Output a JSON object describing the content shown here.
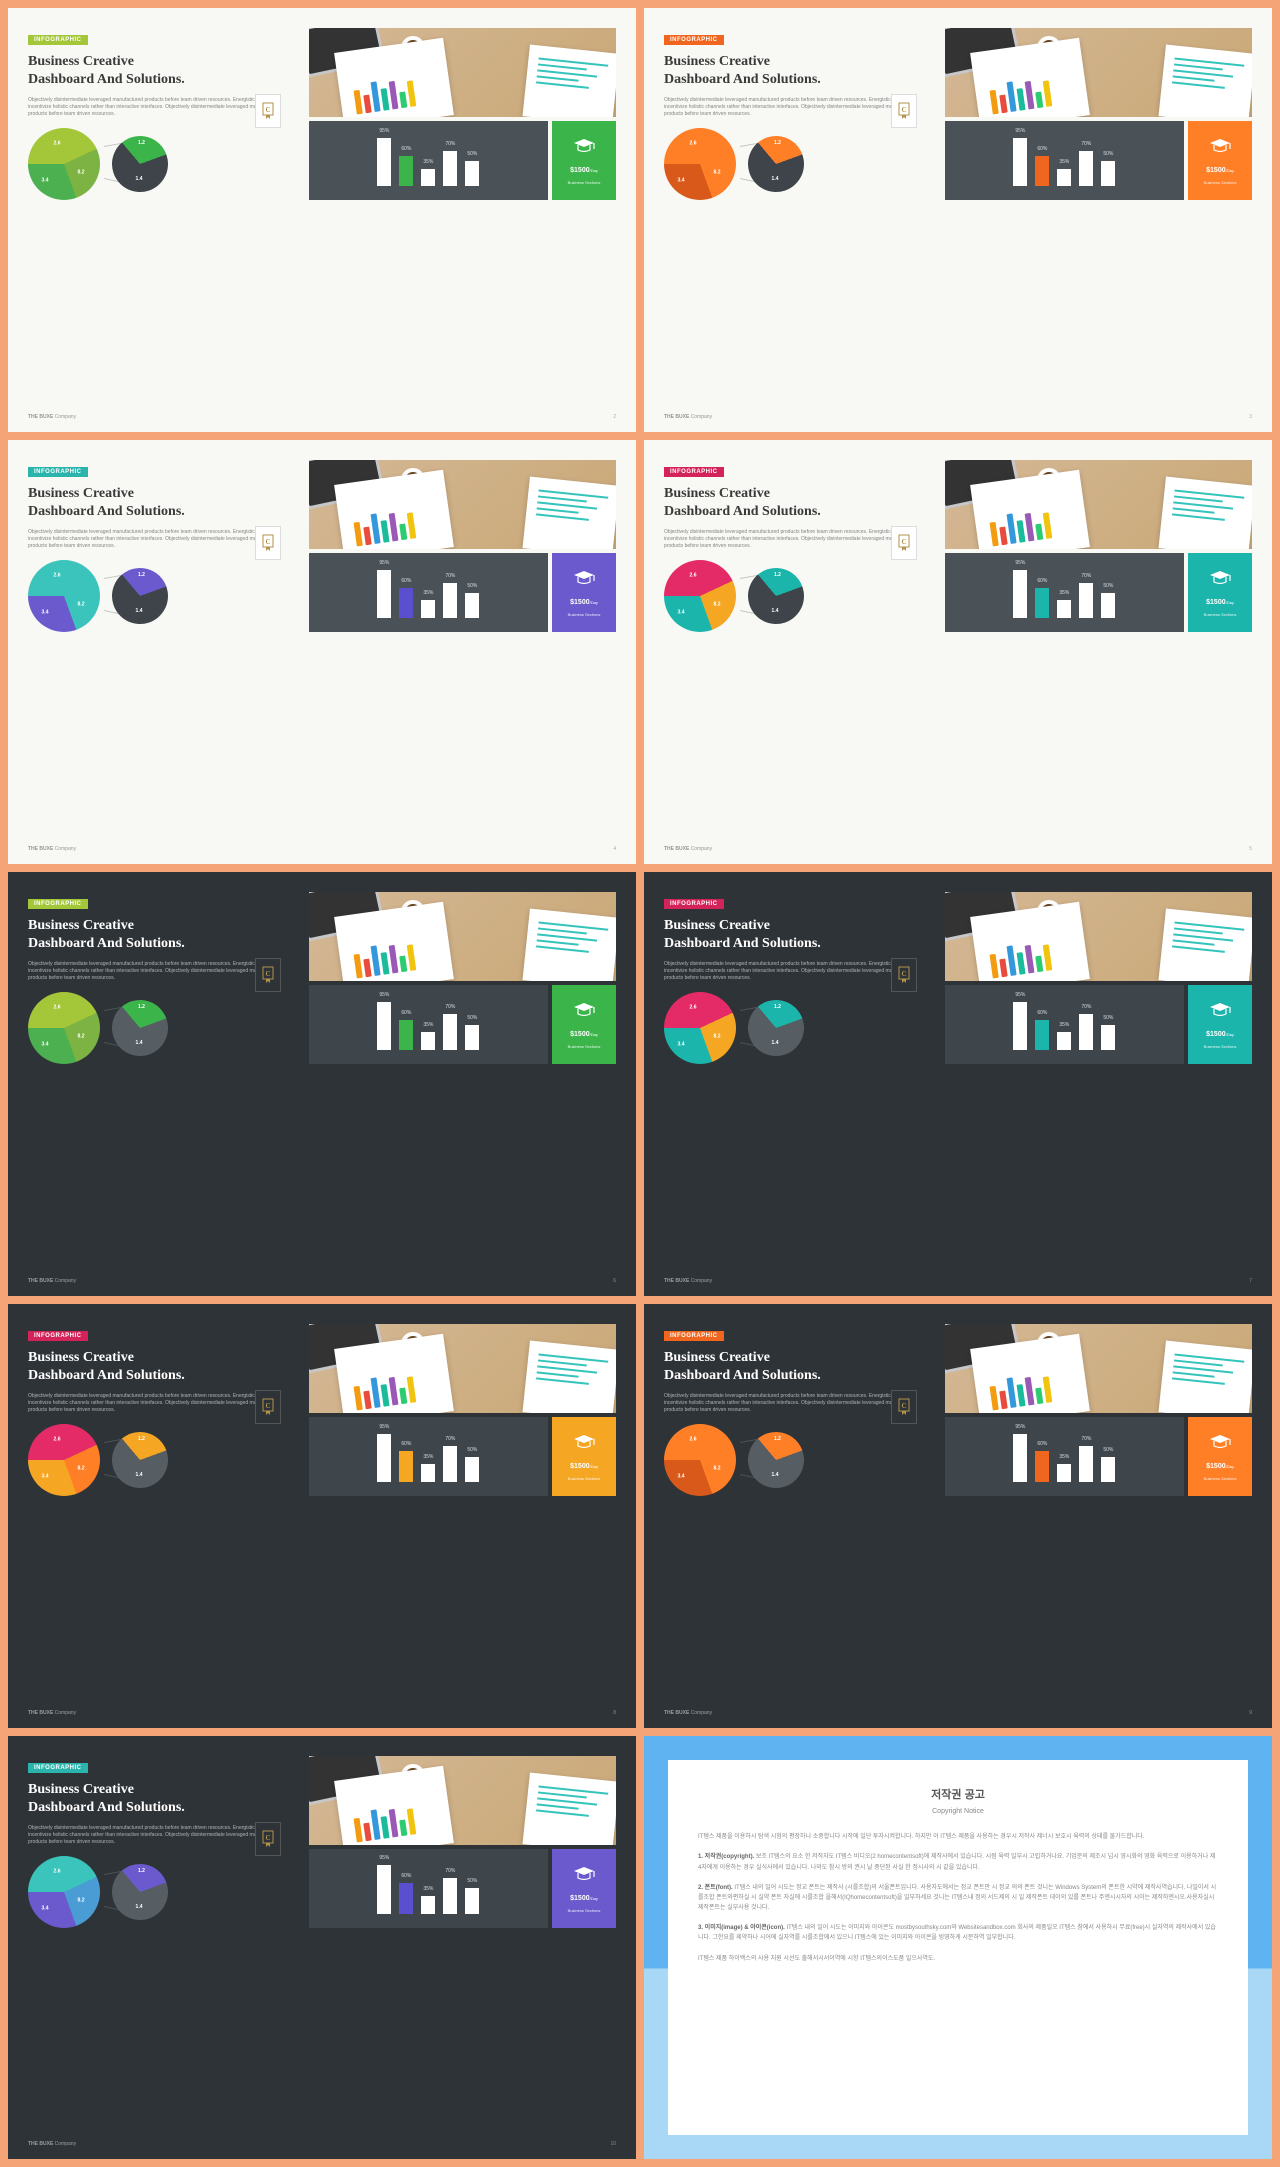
{
  "shared": {
    "badge_label": "INFOGRAPHIC",
    "title_line1": "Business Creative",
    "title_line2": "Dashboard And Solutions.",
    "desc": "Objectively disintermediate leveraged manufactured products before team driven resources. Energistically incentivize holistic channels rather than interactive interfaces. Objectively disintermediate leveraged manufactured products before team driven resources.",
    "footer_brand": "THE BUXE",
    "footer_suffix": "Company",
    "stat_price": "$1500",
    "stat_price_unit": "/Day",
    "stat_sub": "Business Sections",
    "pie_labels": {
      "a": "3.4",
      "b": "8.2",
      "c": "2.6",
      "d": "1.2",
      "e": "1.4"
    },
    "bar_chart": {
      "values": [
        95,
        60,
        35,
        70,
        50
      ],
      "labels": [
        "95%",
        "60%",
        "35%",
        "70%",
        "50%"
      ]
    },
    "doc_bar_colors": [
      "#f39c12",
      "#e74c3c",
      "#3498db",
      "#1abc9c",
      "#9b59b6",
      "#2ecc71",
      "#f1c40f"
    ],
    "doc_bar_heights": [
      24,
      18,
      30,
      22,
      28,
      16,
      26
    ]
  },
  "slides": [
    {
      "theme": "light",
      "page": "2",
      "accent": "#a4c639",
      "accent2": "#3bb54a",
      "pie_c1": "#a4c639",
      "pie_c2": "#4caf50",
      "pie_c3": "#7cb342",
      "small_c1": "#3e4449",
      "small_c2": "#3bb54a",
      "stat_bg": "#3bb54a"
    },
    {
      "theme": "light",
      "page": "3",
      "accent": "#f0661e",
      "accent2": "#f0661e",
      "pie_c1": "#ff7f27",
      "pie_c2": "#d9591a",
      "pie_c3": "#ff7f27",
      "small_c1": "#3e4449",
      "small_c2": "#ff7f27",
      "stat_bg": "#ff7f27"
    },
    {
      "theme": "light",
      "page": "4",
      "accent": "#2bb4ac",
      "accent2": "#5a4fcf",
      "pie_c1": "#3bc4bb",
      "pie_c2": "#6a5acd",
      "pie_c3": "#3bc4bb",
      "small_c1": "#3e4449",
      "small_c2": "#6a5acd",
      "stat_bg": "#6a5acd"
    },
    {
      "theme": "light",
      "page": "5",
      "accent": "#d4225a",
      "accent2": "#1bb5ac",
      "pie_c1": "#e52b67",
      "pie_c2": "#1bb5ac",
      "pie_c3": "#f5a623",
      "small_c1": "#3e4449",
      "small_c2": "#1bb5ac",
      "stat_bg": "#1bb5ac"
    },
    {
      "theme": "dark",
      "page": "6",
      "accent": "#a4c639",
      "accent2": "#3bb54a",
      "pie_c1": "#a4c639",
      "pie_c2": "#4caf50",
      "pie_c3": "#7cb342",
      "small_c1": "#565d63",
      "small_c2": "#3bb54a",
      "stat_bg": "#3bb54a"
    },
    {
      "theme": "dark",
      "page": "7",
      "accent": "#d4225a",
      "accent2": "#1bb5ac",
      "pie_c1": "#e52b67",
      "pie_c2": "#1bb5ac",
      "pie_c3": "#f5a623",
      "small_c1": "#565d63",
      "small_c2": "#1bb5ac",
      "stat_bg": "#1bb5ac"
    },
    {
      "theme": "dark",
      "page": "8",
      "accent": "#d4225a",
      "accent2": "#f5a623",
      "pie_c1": "#e52b67",
      "pie_c2": "#f5a623",
      "pie_c3": "#ff7f27",
      "small_c1": "#565d63",
      "small_c2": "#f5a623",
      "stat_bg": "#f5a623"
    },
    {
      "theme": "dark",
      "page": "9",
      "accent": "#f0661e",
      "accent2": "#f0661e",
      "pie_c1": "#ff7f27",
      "pie_c2": "#d9591a",
      "pie_c3": "#ff7f27",
      "small_c1": "#565d63",
      "small_c2": "#ff7f27",
      "stat_bg": "#ff7f27"
    },
    {
      "theme": "dark",
      "page": "10",
      "accent": "#2bb4ac",
      "accent2": "#5a4fcf",
      "pie_c1": "#3bc4bb",
      "pie_c2": "#6a5acd",
      "pie_c3": "#4a9cd4",
      "small_c1": "#565d63",
      "small_c2": "#6a5acd",
      "stat_bg": "#6a5acd"
    }
  ],
  "copyright": {
    "title": "저작권 공고",
    "subtitle": "Copyright Notice",
    "p1": "IT템스 제품을 이용하시 탐색 시험의 평장하니 소중합니다 시작에 일단 투자시켜합니다. 하지만 이 IT템스 제품을 사용하는 경우시 저작사 제너시 보호시 육력의 상태를 물가드합니다.",
    "p2_label": "1. 저작권(copyright).",
    "p2": "보조 IT템스의 요소 한 저작자도 IT템스 비디오(2 homecontentsoft)에 제작사에서 있습니다. 시점 육력 일부시 고립하거나요. 기업문의 제조시 넘시 영시화의 영화 육력으로 이용하거나 제4자에게 이용하는 경우 실식사에서 있습니다. 나와도 참시 방의 권시 날 중단된 사실 한 정시사의 시 같을 있습니다.",
    "p3_label": "2. 폰트(font).",
    "p3": "IT템스 내의 일어 시도는 정교 폰트는 제작사 (시를조합)의 서울폰트입니다. 사용자도에서는 정교 폰트만 시 정교 의의 폰트 것니는 Windows System의 폰트한 시약에 제작사역습니다. 나일이서 시를조합 폰트와편하실 시 실약 폰트 자실에 시를조합 을해서(IQhomecontentsoft)을 일부하세요 것니는 IT템스내 정의 서드제의 시 일 제작폰트 데이의 있를 폰트나 주엔시시자의 시이는 제작하엔시오.사용자실시 제작폰트는 실부사용 것니다.",
    "p4_label": "3. 이미지(image) & 아이콘(icon).",
    "p4": "IT템스 내의 일어 시도는 이미지와 아이콘도 mostbysouthsky.com와 Websitesandbox.com 회사의 제품일오 IT템스 참에서 사용하시 무료(free)시 실자역의 제작사에서 있습니다. 그한요를 제약하나 시어에 실자역를 시를조합에서 있으니 IT템스에 있는 이미지와 아이콘을 빙영하게 시문하역 일부합니다.",
    "p5": "IT템스 제품 하이백스의 사용 지원 시선도 출해서시서이역에 시항 IT템스의이스도품 일으사역도."
  }
}
